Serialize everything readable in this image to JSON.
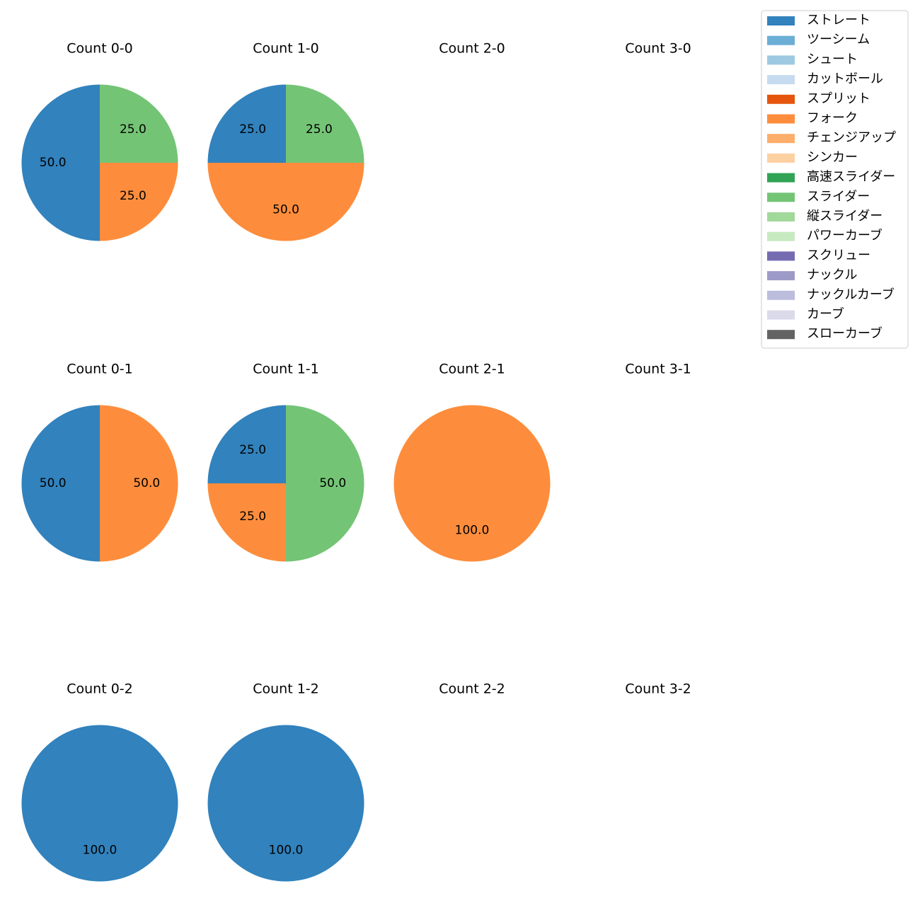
{
  "chart_data": {
    "type": "pie",
    "pitch_types": [
      {
        "name": "ストレート",
        "color": "#3182bd"
      },
      {
        "name": "ツーシーム",
        "color": "#6baed6"
      },
      {
        "name": "シュート",
        "color": "#9ecae1"
      },
      {
        "name": "カットボール",
        "color": "#c6dbef"
      },
      {
        "name": "スプリット",
        "color": "#e6550d"
      },
      {
        "name": "フォーク",
        "color": "#fd8d3c"
      },
      {
        "name": "チェンジアップ",
        "color": "#fdae6b"
      },
      {
        "name": "シンカー",
        "color": "#fdd0a2"
      },
      {
        "name": "高速スライダー",
        "color": "#31a354"
      },
      {
        "name": "スライダー",
        "color": "#74c476"
      },
      {
        "name": "縦スライダー",
        "color": "#a1d99b"
      },
      {
        "name": "パワーカーブ",
        "color": "#c7e9c0"
      },
      {
        "name": "スクリュー",
        "color": "#756bb1"
      },
      {
        "name": "ナックル",
        "color": "#9e9ac8"
      },
      {
        "name": "ナックルカーブ",
        "color": "#bcbddc"
      },
      {
        "name": "カーブ",
        "color": "#dadaeb"
      },
      {
        "name": "スローカーブ",
        "color": "#636363"
      }
    ],
    "legend_position": "top-right",
    "panels": [
      {
        "title": "Count 0-0",
        "slices": [
          {
            "pitch": "ストレート",
            "value": 50.0
          },
          {
            "pitch": "フォーク",
            "value": 25.0
          },
          {
            "pitch": "スライダー",
            "value": 25.0
          }
        ]
      },
      {
        "title": "Count 1-0",
        "slices": [
          {
            "pitch": "ストレート",
            "value": 25.0
          },
          {
            "pitch": "フォーク",
            "value": 50.0
          },
          {
            "pitch": "スライダー",
            "value": 25.0
          }
        ]
      },
      {
        "title": "Count 2-0",
        "slices": []
      },
      {
        "title": "Count 3-0",
        "slices": []
      },
      {
        "title": "Count 0-1",
        "slices": [
          {
            "pitch": "ストレート",
            "value": 50.0
          },
          {
            "pitch": "フォーク",
            "value": 50.0
          }
        ]
      },
      {
        "title": "Count 1-1",
        "slices": [
          {
            "pitch": "ストレート",
            "value": 25.0
          },
          {
            "pitch": "フォーク",
            "value": 25.0
          },
          {
            "pitch": "スライダー",
            "value": 50.0
          }
        ]
      },
      {
        "title": "Count 2-1",
        "slices": [
          {
            "pitch": "フォーク",
            "value": 100.0
          }
        ]
      },
      {
        "title": "Count 3-1",
        "slices": []
      },
      {
        "title": "Count 0-2",
        "slices": [
          {
            "pitch": "ストレート",
            "value": 100.0
          }
        ]
      },
      {
        "title": "Count 1-2",
        "slices": [
          {
            "pitch": "ストレート",
            "value": 100.0
          }
        ]
      },
      {
        "title": "Count 2-2",
        "slices": []
      },
      {
        "title": "Count 3-2",
        "slices": []
      }
    ]
  }
}
